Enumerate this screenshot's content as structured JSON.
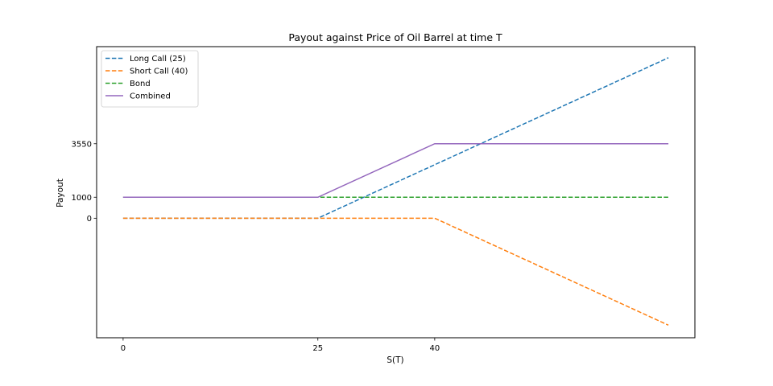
{
  "chart_data": {
    "type": "line",
    "title": "Payout against Price of Oil Barrel at time T",
    "xlabel": "S(T)",
    "ylabel": "Payout",
    "x_ticks": [
      0,
      25,
      40
    ],
    "y_ticks": [
      0,
      1000,
      3550
    ],
    "xlim": [
      -3.4,
      73.4
    ],
    "ylim": [
      -5700,
      8180
    ],
    "grid": false,
    "legend_position": "upper-left",
    "series": [
      {
        "name": "Long Call (25)",
        "style": "dashed",
        "color": "#1f77b4",
        "points": [
          [
            0,
            0
          ],
          [
            25,
            0
          ],
          [
            70,
            7650
          ]
        ]
      },
      {
        "name": "Short Call (40)",
        "style": "dashed",
        "color": "#ff7f0e",
        "points": [
          [
            0,
            0
          ],
          [
            40,
            0
          ],
          [
            70,
            -5100
          ]
        ]
      },
      {
        "name": "Bond",
        "style": "dashed",
        "color": "#2ca02c",
        "points": [
          [
            0,
            1000
          ],
          [
            70,
            1000
          ]
        ]
      },
      {
        "name": "Combined",
        "style": "solid",
        "color": "#9467bd",
        "points": [
          [
            0,
            1000
          ],
          [
            25,
            1000
          ],
          [
            40,
            3550
          ],
          [
            70,
            3550
          ]
        ]
      }
    ]
  }
}
